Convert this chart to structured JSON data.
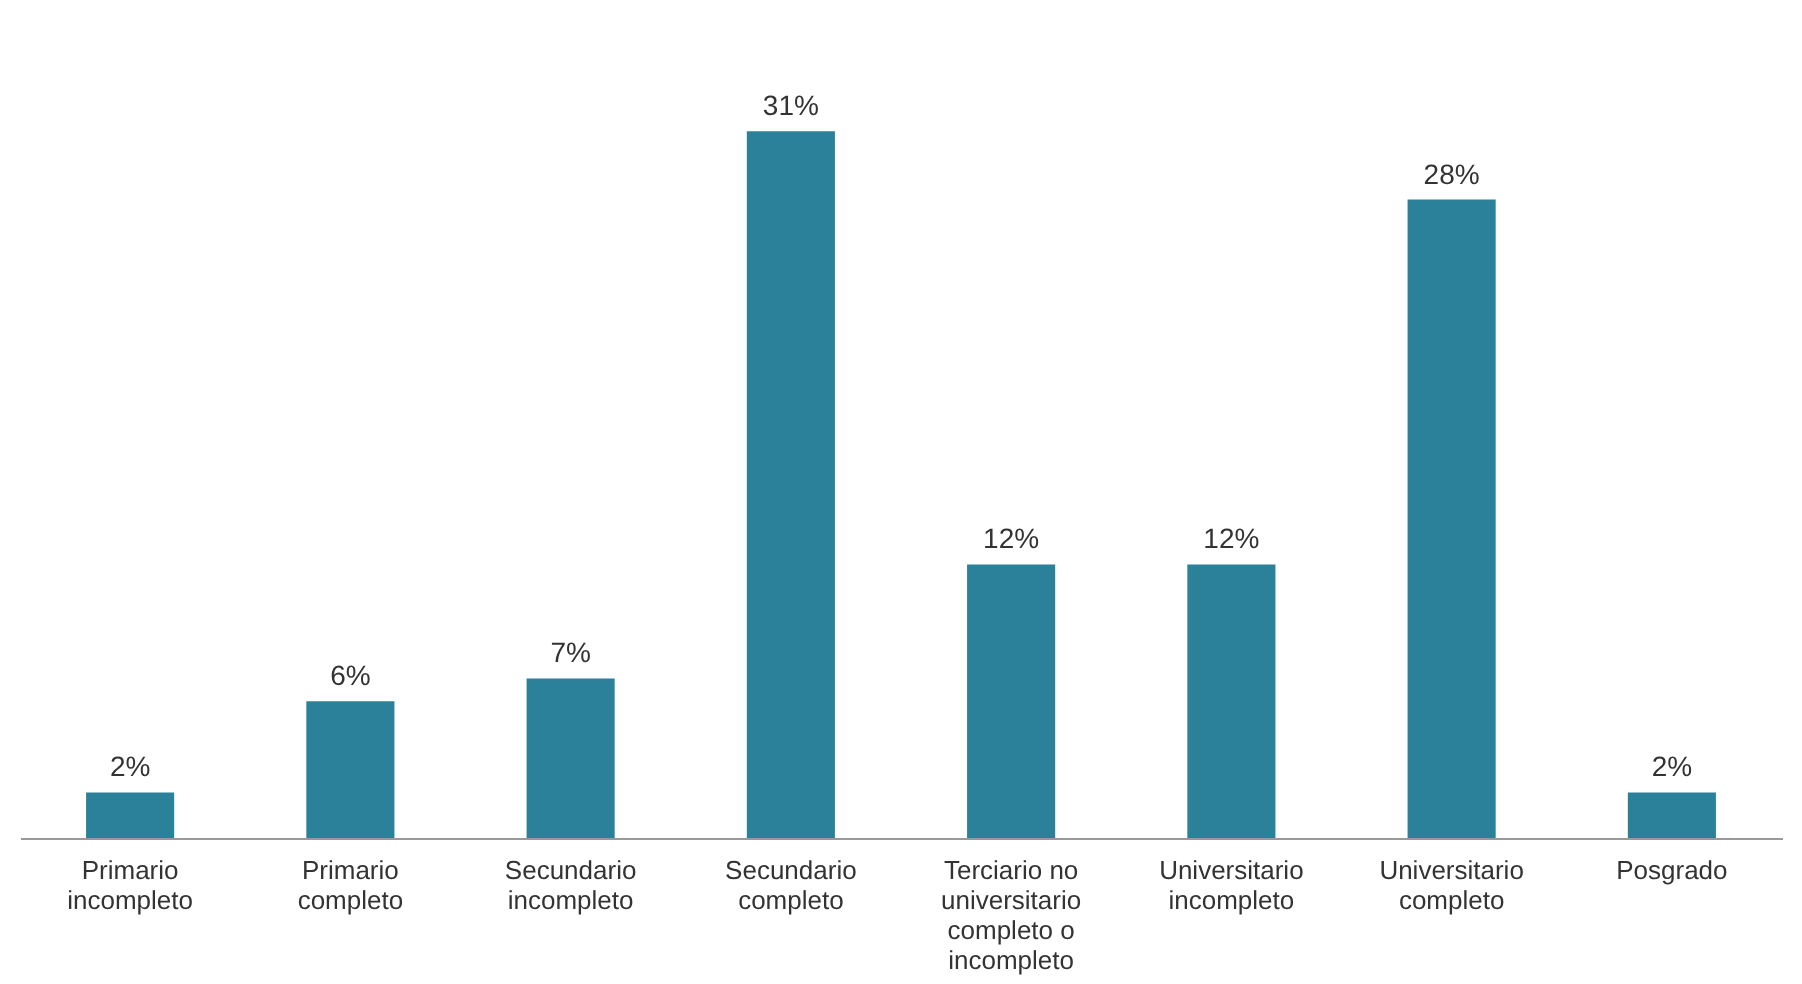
{
  "chart_data": {
    "type": "bar",
    "categories": [
      "Primario incompleto",
      "Primario completo",
      "Secundario incompleto",
      "Secundario completo",
      "Terciario no universitario completo o incompleto",
      "Universitario incompleto",
      "Universitario completo",
      "Posgrado"
    ],
    "values": [
      2,
      6,
      7,
      31,
      12,
      12,
      28,
      2
    ],
    "value_labels": [
      "2%",
      "6%",
      "7%",
      "31%",
      "12%",
      "12%",
      "28%",
      "2%"
    ],
    "color": "#2a8199",
    "grid": false
  }
}
